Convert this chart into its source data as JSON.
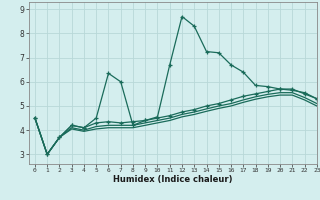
{
  "title": "",
  "xlabel": "Humidex (Indice chaleur)",
  "ylabel": "",
  "bg_color": "#d4eeee",
  "grid_color": "#b8d8d8",
  "line_color": "#1a6b5a",
  "xlim": [
    -0.5,
    23
  ],
  "ylim": [
    2.6,
    9.3
  ],
  "xticks": [
    0,
    1,
    2,
    3,
    4,
    5,
    6,
    7,
    8,
    9,
    10,
    11,
    12,
    13,
    14,
    15,
    16,
    17,
    18,
    19,
    20,
    21,
    22,
    23
  ],
  "yticks": [
    3,
    4,
    5,
    6,
    7,
    8,
    9
  ],
  "series": [
    {
      "x": [
        0,
        1,
        2,
        3,
        4,
        5,
        6,
        7,
        8,
        9,
        10,
        11,
        12,
        13,
        14,
        15,
        16,
        17,
        18,
        19,
        20,
        21,
        22,
        23
      ],
      "y": [
        4.5,
        3.0,
        3.7,
        4.2,
        4.1,
        4.5,
        6.35,
        6.0,
        4.2,
        4.4,
        4.55,
        6.7,
        8.7,
        8.3,
        7.25,
        7.2,
        6.7,
        6.4,
        5.85,
        5.8,
        5.7,
        5.65,
        5.55,
        5.3
      ],
      "marker": "+"
    },
    {
      "x": [
        0,
        1,
        2,
        3,
        4,
        5,
        6,
        7,
        8,
        9,
        10,
        11,
        12,
        13,
        14,
        15,
        16,
        17,
        18,
        19,
        20,
        21,
        22,
        23
      ],
      "y": [
        4.5,
        3.0,
        3.7,
        4.2,
        4.1,
        4.3,
        4.35,
        4.3,
        4.35,
        4.4,
        4.5,
        4.6,
        4.75,
        4.85,
        5.0,
        5.1,
        5.25,
        5.4,
        5.5,
        5.6,
        5.7,
        5.7,
        5.5,
        5.3
      ],
      "marker": "+"
    },
    {
      "x": [
        0,
        1,
        2,
        3,
        4,
        5,
        6,
        7,
        8,
        9,
        10,
        11,
        12,
        13,
        14,
        15,
        16,
        17,
        18,
        19,
        20,
        21,
        22,
        23
      ],
      "y": [
        4.5,
        3.0,
        3.7,
        4.1,
        4.0,
        4.15,
        4.2,
        4.2,
        4.2,
        4.3,
        4.4,
        4.5,
        4.65,
        4.75,
        4.88,
        5.0,
        5.1,
        5.25,
        5.38,
        5.48,
        5.55,
        5.55,
        5.35,
        5.1
      ],
      "marker": null
    },
    {
      "x": [
        0,
        1,
        2,
        3,
        4,
        5,
        6,
        7,
        8,
        9,
        10,
        11,
        12,
        13,
        14,
        15,
        16,
        17,
        18,
        19,
        20,
        21,
        22,
        23
      ],
      "y": [
        4.5,
        3.0,
        3.7,
        4.05,
        3.95,
        4.05,
        4.1,
        4.1,
        4.1,
        4.2,
        4.3,
        4.4,
        4.55,
        4.65,
        4.78,
        4.9,
        5.0,
        5.15,
        5.28,
        5.38,
        5.45,
        5.45,
        5.25,
        5.0
      ],
      "marker": null
    }
  ]
}
